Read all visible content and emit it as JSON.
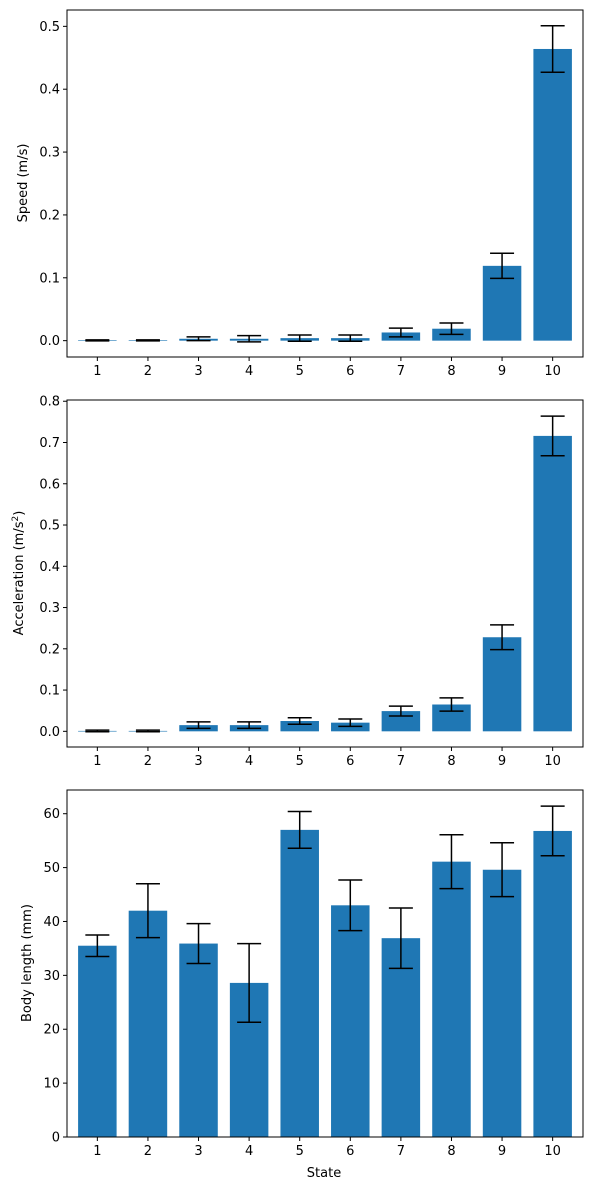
{
  "colors": {
    "bar": "#1f77b4",
    "error_bar": "#000000",
    "axes": "#000000",
    "background": "#ffffff"
  },
  "chart_data": [
    {
      "type": "bar",
      "categories": [
        "1",
        "2",
        "3",
        "4",
        "5",
        "6",
        "7",
        "8",
        "9",
        "10"
      ],
      "values": [
        0.0005,
        0.0005,
        0.003,
        0.003,
        0.004,
        0.004,
        0.013,
        0.019,
        0.119,
        0.464
      ],
      "errors": [
        0.0008,
        0.0008,
        0.003,
        0.005,
        0.005,
        0.005,
        0.007,
        0.009,
        0.02,
        0.037
      ],
      "xlabel": "",
      "ylabel": "Speed (m/s)",
      "ylim": [
        -0.026,
        0.526
      ],
      "yticks": [
        0.0,
        0.1,
        0.2,
        0.3,
        0.4,
        0.5
      ],
      "ytick_labels": [
        "0.0",
        "0.1",
        "0.2",
        "0.3",
        "0.4",
        "0.5"
      ],
      "grid": false,
      "has_error_bars": true
    },
    {
      "type": "bar",
      "categories": [
        "1",
        "2",
        "3",
        "4",
        "5",
        "6",
        "7",
        "8",
        "9",
        "10"
      ],
      "values": [
        0.001,
        0.001,
        0.015,
        0.015,
        0.025,
        0.021,
        0.049,
        0.065,
        0.228,
        0.716
      ],
      "errors": [
        0.002,
        0.002,
        0.008,
        0.008,
        0.008,
        0.009,
        0.012,
        0.016,
        0.03,
        0.048
      ],
      "xlabel": "",
      "ylabel": "Acceleration (m/s2)",
      "ylabel_base": "Acceleration (m/s",
      "ylabel_sup": "2",
      "ylabel_tail": ")",
      "ylim": [
        -0.038,
        0.803
      ],
      "yticks": [
        0.0,
        0.1,
        0.2,
        0.3,
        0.4,
        0.5,
        0.6,
        0.7,
        0.8
      ],
      "ytick_labels": [
        "0.0",
        "0.1",
        "0.2",
        "0.3",
        "0.4",
        "0.5",
        "0.6",
        "0.7",
        "0.8"
      ],
      "grid": false,
      "has_error_bars": true
    },
    {
      "type": "bar",
      "categories": [
        "1",
        "2",
        "3",
        "4",
        "5",
        "6",
        "7",
        "8",
        "9",
        "10"
      ],
      "values": [
        35.5,
        42.0,
        35.9,
        28.6,
        57.0,
        43.0,
        36.9,
        51.1,
        49.6,
        56.8
      ],
      "errors": [
        2.0,
        5.0,
        3.7,
        7.3,
        3.4,
        4.7,
        5.6,
        5.0,
        5.0,
        4.6
      ],
      "xlabel": "State",
      "ylabel": "Body length (mm)",
      "ylim": [
        0,
        64.4
      ],
      "yticks": [
        0,
        10,
        20,
        30,
        40,
        50,
        60
      ],
      "ytick_labels": [
        "0",
        "10",
        "20",
        "30",
        "40",
        "50",
        "60"
      ],
      "grid": false,
      "has_error_bars": true
    }
  ]
}
